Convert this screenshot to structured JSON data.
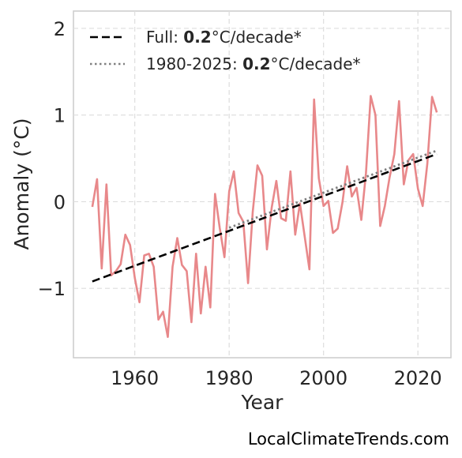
{
  "chart_data": {
    "type": "line",
    "xlabel": "Year",
    "ylabel": "Anomaly (°C)",
    "xlim": [
      1947,
      2027
    ],
    "ylim": [
      -1.8,
      2.2
    ],
    "xticks": [
      1960,
      1980,
      2000,
      2020
    ],
    "yticks": [
      2,
      1,
      0,
      -1
    ],
    "ytick_labels": [
      "2",
      "1",
      "0",
      "−1"
    ],
    "grid": true,
    "legend_position": "top-left",
    "series": [
      {
        "color": "#e8888a",
        "x": [
          1951,
          1952,
          1953,
          1954,
          1955,
          1956,
          1957,
          1958,
          1959,
          1960,
          1961,
          1962,
          1963,
          1964,
          1965,
          1966,
          1967,
          1968,
          1969,
          1970,
          1971,
          1972,
          1973,
          1974,
          1975,
          1976,
          1977,
          1978,
          1979,
          1980,
          1981,
          1982,
          1983,
          1984,
          1985,
          1986,
          1987,
          1988,
          1989,
          1990,
          1991,
          1992,
          1993,
          1994,
          1995,
          1996,
          1997,
          1998,
          1999,
          2000,
          2001,
          2002,
          2003,
          2004,
          2005,
          2006,
          2007,
          2008,
          2009,
          2010,
          2011,
          2012,
          2013,
          2014,
          2015,
          2016,
          2017,
          2018,
          2019,
          2020,
          2021,
          2022,
          2023,
          2024
        ],
        "y": [
          -0.06,
          0.26,
          -0.77,
          0.2,
          -0.85,
          -0.8,
          -0.72,
          -0.38,
          -0.5,
          -0.88,
          -1.16,
          -0.62,
          -0.6,
          -0.75,
          -1.36,
          -1.27,
          -1.56,
          -0.75,
          -0.42,
          -0.73,
          -0.8,
          -1.39,
          -0.6,
          -1.29,
          -0.75,
          -1.22,
          0.09,
          -0.3,
          -0.64,
          0.12,
          0.35,
          -0.13,
          -0.23,
          -0.94,
          -0.12,
          0.42,
          0.3,
          -0.55,
          -0.07,
          0.24,
          -0.19,
          -0.22,
          0.35,
          -0.38,
          -0.02,
          -0.4,
          -0.78,
          1.18,
          0.27,
          -0.05,
          0.01,
          -0.36,
          -0.31,
          -0.01,
          0.41,
          0.06,
          0.16,
          -0.21,
          0.33,
          1.22,
          1.0,
          -0.28,
          -0.05,
          0.28,
          0.55,
          1.16,
          0.2,
          0.48,
          0.55,
          0.15,
          -0.05,
          0.44,
          1.21,
          1.03
        ]
      }
    ],
    "trend_lines": [
      {
        "label_prefix": "Full: ",
        "label_value": "0.2",
        "label_suffix": "°C/decade*",
        "style": "dashed",
        "color": "#000000",
        "x": [
          1951,
          2024
        ],
        "y": [
          -0.92,
          0.55
        ]
      },
      {
        "label_prefix": "1980-2025: ",
        "label_value": "0.2",
        "label_suffix": "°C/decade*",
        "style": "dotted",
        "color": "#808080",
        "x": [
          1980,
          2024
        ],
        "y": [
          -0.3,
          0.59
        ]
      }
    ]
  },
  "watermark": "LocalClimateTrends.com"
}
